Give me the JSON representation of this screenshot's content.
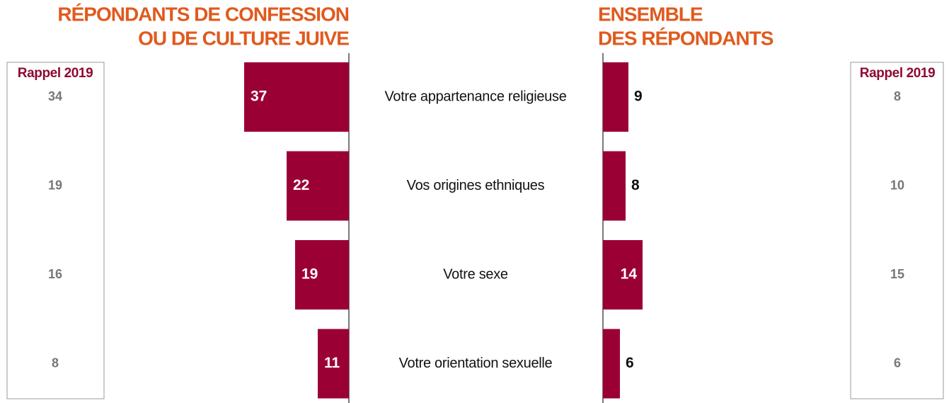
{
  "chart_data": [
    {
      "type": "bar",
      "title": [
        "RÉPONDANTS DE CONFESSION",
        "OU DE CULTURE JUIVE"
      ],
      "categories": [
        "Votre appartenance religieuse",
        "Vos origines ethniques",
        "Votre sexe",
        "Votre orientation sexuelle"
      ],
      "values": [
        37,
        22,
        19,
        11
      ],
      "color": "#9b0034",
      "recall": {
        "title": "Rappel 2019",
        "values": [
          34,
          19,
          16,
          8
        ]
      }
    },
    {
      "type": "bar",
      "title": [
        "ENSEMBLE",
        "DES RÉPONDANTS"
      ],
      "values": [
        9,
        8,
        14,
        6
      ],
      "color": "#9b0034",
      "recall": {
        "title": "Rappel 2019",
        "values": [
          8,
          10,
          15,
          6
        ]
      }
    }
  ]
}
